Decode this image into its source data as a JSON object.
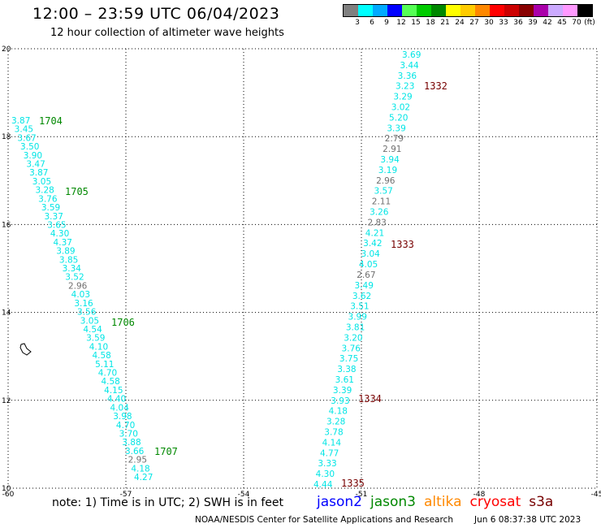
{
  "header": {
    "title": "12:00 – 23:59 UTC 06/04/2023",
    "subtitle": "12 hour collection of altimeter wave heights"
  },
  "legend": {
    "unit": "(ft)",
    "bins": [
      {
        "label": "3",
        "color": "#808080"
      },
      {
        "label": "6",
        "color": "#00ffff"
      },
      {
        "label": "9",
        "color": "#00aaff"
      },
      {
        "label": "12",
        "color": "#0000ff"
      },
      {
        "label": "15",
        "color": "#55ff55"
      },
      {
        "label": "18",
        "color": "#00cc00"
      },
      {
        "label": "21",
        "color": "#008800"
      },
      {
        "label": "24",
        "color": "#ffff00"
      },
      {
        "label": "27",
        "color": "#ffcc00"
      },
      {
        "label": "30",
        "color": "#ff8800"
      },
      {
        "label": "33",
        "color": "#ff0000"
      },
      {
        "label": "36",
        "color": "#cc0000"
      },
      {
        "label": "39",
        "color": "#880000"
      },
      {
        "label": "42",
        "color": "#aa00aa"
      },
      {
        "label": "45",
        "color": "#ccaaff"
      },
      {
        "label": "70",
        "color": "#ff99ff"
      },
      {
        "label": "",
        "color": "#000000"
      }
    ]
  },
  "map": {
    "lon_range": [
      -60,
      -45
    ],
    "lat_range": [
      10,
      20
    ],
    "x_ticks": [
      "-60",
      "-57",
      "-54",
      "-51",
      "-48",
      "-45"
    ],
    "y_ticks": [
      "20",
      "18",
      "16",
      "14",
      "12",
      "10"
    ],
    "colors": {
      "cyan": "#00e5e5",
      "gray": "#707070",
      "jason3": "#008800",
      "cryosat": "#770000"
    },
    "tracks": [
      {
        "id": "west",
        "passes": [
          {
            "label": "1704",
            "color": "jason3"
          },
          {
            "label": "1705",
            "color": "jason3"
          },
          {
            "label": "1706",
            "color": "jason3"
          },
          {
            "label": "1707",
            "color": "jason3"
          }
        ],
        "values": [
          "3.87",
          "3.45",
          "3.67",
          "3.50",
          "3.90",
          "3.47",
          "3.87",
          "3.05",
          "3.28",
          "3.76",
          "3.59",
          "3.37",
          "3.65",
          "4.30",
          "4.37",
          "3.89",
          "3.85",
          "3.34",
          "3.52",
          "2.96",
          "4.03",
          "3.16",
          "3.56",
          "3.05",
          "4.54",
          "3.59",
          "4.10",
          "4.58",
          "5.11",
          "4.70",
          "4.58",
          "4.15",
          "4.40",
          "4.04",
          "3.98",
          "4.70",
          "3.70",
          "3.88",
          "3.66",
          "2.95",
          "4.18",
          "4.27"
        ]
      },
      {
        "id": "east",
        "passes": [
          {
            "label": "1332",
            "color": "cryosat"
          },
          {
            "label": "1333",
            "color": "cryosat"
          },
          {
            "label": "1334",
            "color": "cryosat"
          },
          {
            "label": "1335",
            "color": "cryosat"
          }
        ],
        "values": [
          "3.69",
          "3.44",
          "3.36",
          "3.23",
          "3.29",
          "3.02",
          "5.20",
          "3.39",
          "2.79",
          "2.91",
          "3.94",
          "3.19",
          "2.96",
          "3.57",
          "2.11",
          "3.26",
          "2.83",
          "4.21",
          "3.42",
          "3.04",
          "4.05",
          "2.67",
          "3.49",
          "3.62",
          "3.51",
          "3.99",
          "3.81",
          "3.20",
          "3.76",
          "3.75",
          "3.38",
          "3.61",
          "3.39",
          "3.93",
          "4.18",
          "3.28",
          "3.78",
          "4.14",
          "4.77",
          "3.33",
          "4.30",
          "4.44"
        ]
      }
    ]
  },
  "footer": {
    "note": "note:  1) Time is in UTC;  2) SWH is in feet",
    "satellites": [
      {
        "name": "jason2",
        "color": "#0000ff"
      },
      {
        "name": "jason3",
        "color": "#008800"
      },
      {
        "name": "altika",
        "color": "#ff8800"
      },
      {
        "name": "cryosat",
        "color": "#ff0000"
      },
      {
        "name": "s3a",
        "color": "#770000"
      }
    ],
    "credit": "NOAA/NESDIS Center for Satellite Applications and Research",
    "generated": "Jun  6 08:37:38 UTC 2023"
  }
}
